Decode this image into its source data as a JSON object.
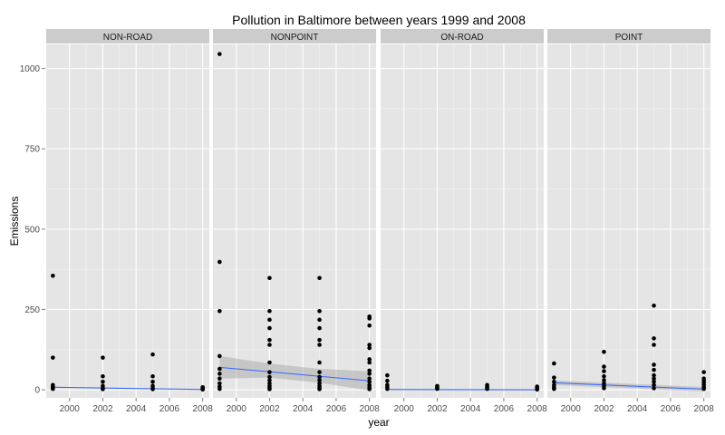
{
  "chart_data": {
    "type": "scatter",
    "title": "Pollution in Baltimore between years 1999 and 2008",
    "xlabel": "year",
    "ylabel": "Emissions",
    "xlim": [
      1998.6,
      2008.4
    ],
    "ylim": [
      -25,
      1075
    ],
    "x_ticks": [
      2000,
      2002,
      2004,
      2006,
      2008
    ],
    "y_ticks": [
      0,
      250,
      500,
      750,
      1000
    ],
    "grid": true,
    "colors": {
      "panel_bg": "#e5e5e5",
      "strip_bg": "#cccccc",
      "grid_major": "#ffffff",
      "points": "#000000",
      "fit_line": "#3366ff",
      "confidence_band": "#999999"
    },
    "panels": [
      {
        "name": "NON-ROAD",
        "points": [
          [
            1999,
            355
          ],
          [
            1999,
            100
          ],
          [
            1999,
            15
          ],
          [
            1999,
            10
          ],
          [
            1999,
            6
          ],
          [
            1999,
            3
          ],
          [
            2002,
            100
          ],
          [
            2002,
            42
          ],
          [
            2002,
            25
          ],
          [
            2002,
            12
          ],
          [
            2002,
            5
          ],
          [
            2002,
            2
          ],
          [
            2005,
            110
          ],
          [
            2005,
            42
          ],
          [
            2005,
            25
          ],
          [
            2005,
            12
          ],
          [
            2005,
            5
          ],
          [
            2005,
            2
          ],
          [
            2008,
            8
          ],
          [
            2008,
            5
          ],
          [
            2008,
            3
          ],
          [
            2008,
            1
          ]
        ],
        "fit": {
          "x": [
            1999,
            2008
          ],
          "y": [
            8,
            1
          ]
        },
        "band": {
          "x": [
            1999,
            2008
          ],
          "lower": [
            6,
            -1
          ],
          "upper": [
            10,
            3
          ]
        }
      },
      {
        "name": "NONPOINT",
        "points": [
          [
            1999,
            1045
          ],
          [
            1999,
            398
          ],
          [
            1999,
            245
          ],
          [
            1999,
            105
          ],
          [
            1999,
            65
          ],
          [
            1999,
            50
          ],
          [
            1999,
            35
          ],
          [
            1999,
            20
          ],
          [
            1999,
            10
          ],
          [
            1999,
            3
          ],
          [
            2002,
            348
          ],
          [
            2002,
            245
          ],
          [
            2002,
            218
          ],
          [
            2002,
            192
          ],
          [
            2002,
            155
          ],
          [
            2002,
            140
          ],
          [
            2002,
            85
          ],
          [
            2002,
            55
          ],
          [
            2002,
            40
          ],
          [
            2002,
            30
          ],
          [
            2002,
            20
          ],
          [
            2002,
            12
          ],
          [
            2002,
            6
          ],
          [
            2002,
            2
          ],
          [
            2005,
            348
          ],
          [
            2005,
            245
          ],
          [
            2005,
            218
          ],
          [
            2005,
            192
          ],
          [
            2005,
            155
          ],
          [
            2005,
            140
          ],
          [
            2005,
            85
          ],
          [
            2005,
            55
          ],
          [
            2005,
            40
          ],
          [
            2005,
            30
          ],
          [
            2005,
            20
          ],
          [
            2005,
            12
          ],
          [
            2005,
            6
          ],
          [
            2005,
            2
          ],
          [
            2008,
            228
          ],
          [
            2008,
            222
          ],
          [
            2008,
            200
          ],
          [
            2008,
            140
          ],
          [
            2008,
            130
          ],
          [
            2008,
            95
          ],
          [
            2008,
            85
          ],
          [
            2008,
            60
          ],
          [
            2008,
            50
          ],
          [
            2008,
            35
          ],
          [
            2008,
            25
          ],
          [
            2008,
            15
          ],
          [
            2008,
            8
          ],
          [
            2008,
            2
          ]
        ],
        "fit": {
          "x": [
            1999,
            2008
          ],
          "y": [
            70,
            28
          ]
        },
        "band": {
          "x": [
            1999,
            2002,
            2005,
            2008
          ],
          "lower": [
            35,
            38,
            22,
            -2
          ],
          "upper": [
            105,
            82,
            65,
            58
          ]
        }
      },
      {
        "name": "ON-ROAD",
        "points": [
          [
            1999,
            45
          ],
          [
            1999,
            28
          ],
          [
            1999,
            15
          ],
          [
            1999,
            8
          ],
          [
            1999,
            3
          ],
          [
            2002,
            12
          ],
          [
            2002,
            8
          ],
          [
            2002,
            5
          ],
          [
            2002,
            3
          ],
          [
            2005,
            15
          ],
          [
            2005,
            10
          ],
          [
            2005,
            6
          ],
          [
            2005,
            3
          ],
          [
            2008,
            10
          ],
          [
            2008,
            6
          ],
          [
            2008,
            3
          ],
          [
            2008,
            1
          ]
        ],
        "fit": {
          "x": [
            1999,
            2008
          ],
          "y": [
            1,
            0
          ]
        },
        "band": {
          "x": [
            1999,
            2008
          ],
          "lower": [
            -1,
            -2
          ],
          "upper": [
            3,
            2
          ]
        }
      },
      {
        "name": "POINT",
        "points": [
          [
            1999,
            82
          ],
          [
            1999,
            38
          ],
          [
            1999,
            25
          ],
          [
            1999,
            15
          ],
          [
            1999,
            8
          ],
          [
            1999,
            3
          ],
          [
            2002,
            118
          ],
          [
            2002,
            72
          ],
          [
            2002,
            58
          ],
          [
            2002,
            42
          ],
          [
            2002,
            30
          ],
          [
            2002,
            20
          ],
          [
            2002,
            12
          ],
          [
            2002,
            5
          ],
          [
            2005,
            262
          ],
          [
            2005,
            160
          ],
          [
            2005,
            140
          ],
          [
            2005,
            78
          ],
          [
            2005,
            62
          ],
          [
            2005,
            45
          ],
          [
            2005,
            35
          ],
          [
            2005,
            25
          ],
          [
            2005,
            15
          ],
          [
            2005,
            5
          ],
          [
            2008,
            55
          ],
          [
            2008,
            35
          ],
          [
            2008,
            28
          ],
          [
            2008,
            22
          ],
          [
            2008,
            15
          ],
          [
            2008,
            8
          ],
          [
            2008,
            3
          ]
        ],
        "fit": {
          "x": [
            1999,
            2008
          ],
          "y": [
            22,
            2
          ]
        },
        "band": {
          "x": [
            1999,
            2008
          ],
          "lower": [
            15,
            -5
          ],
          "upper": [
            29,
            9
          ]
        }
      }
    ]
  }
}
